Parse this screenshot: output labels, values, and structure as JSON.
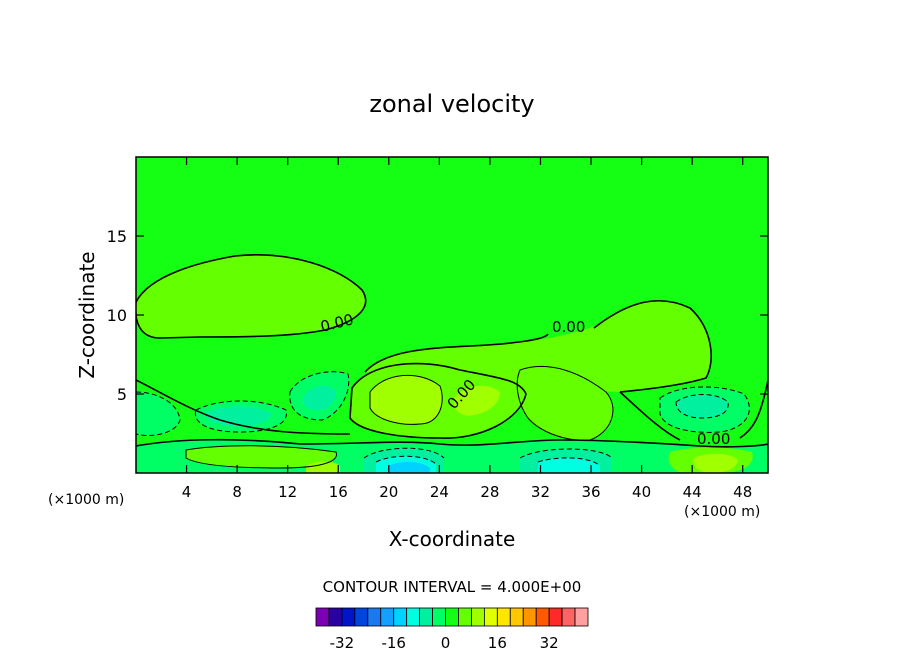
{
  "chart_data": {
    "type": "contour",
    "title": "zonal velocity",
    "xlabel": "X-coordinate",
    "ylabel": "Z-coordinate",
    "x_units": "(×1000 m)",
    "y_units": "(×1000 m)",
    "xlim": [
      0,
      50
    ],
    "ylim": [
      0,
      20
    ],
    "x_ticks": [
      4,
      8,
      12,
      16,
      20,
      24,
      28,
      32,
      36,
      40,
      44,
      48
    ],
    "y_ticks": [
      5,
      10,
      15
    ],
    "contour_interval_text": "CONTOUR INTERVAL = 4.000E+00",
    "contour_labels": [
      "0.00",
      "0.00",
      "0.00",
      "0.00"
    ],
    "colorbar": {
      "ticks": [
        -32,
        -16,
        0,
        16,
        32
      ],
      "colors": [
        "#7a00b4",
        "#2a00a0",
        "#0014c8",
        "#0046dc",
        "#1a78f0",
        "#14a0ff",
        "#00d2ff",
        "#00ffe0",
        "#00f0a0",
        "#00ff64",
        "#14ff14",
        "#64ff00",
        "#a0ff00",
        "#e0ff00",
        "#ffe600",
        "#ffc800",
        "#ff9600",
        "#ff5a00",
        "#ff2a28",
        "#ff6464",
        "#ffa0a0"
      ]
    },
    "field_colors": {
      "background": "#14ff14",
      "plus_4": "#64ff00",
      "plus_8": "#a0ff00",
      "minus_4": "#00ff64",
      "minus_8": "#00f0a0",
      "minus_12": "#00ffe0",
      "minus_16": "#00d2ff"
    }
  }
}
